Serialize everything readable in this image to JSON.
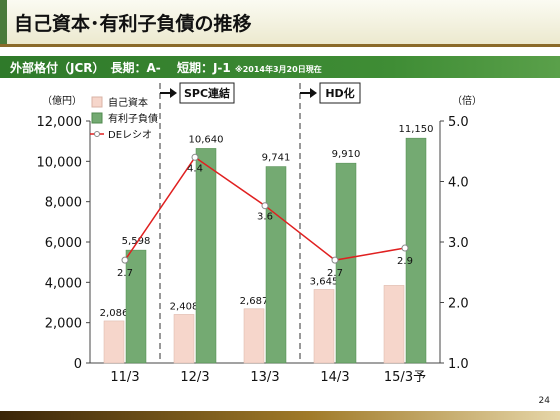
{
  "slide": {
    "title": "自己資本･有利子負債の推移",
    "rating_text": "外部格付（JCR）　長期：A-　 短期：J-1",
    "rating_note": "※2014年3月20日現在",
    "page_number": "24"
  },
  "chart_data": {
    "type": "bar",
    "categories": [
      "11/3",
      "12/3",
      "13/3",
      "14/3",
      "15/3予"
    ],
    "series": [
      {
        "name": "自己資本",
        "type": "bar",
        "axis": "left",
        "color": "#f6d6cb",
        "values": [
          2086,
          2408,
          2687,
          3645,
          3848
        ],
        "labels": [
          "2,086",
          "2,408",
          "2,687",
          "3,645",
          ""
        ]
      },
      {
        "name": "有利子負債",
        "type": "bar",
        "axis": "left",
        "color": "#74aa72",
        "values": [
          5598,
          10640,
          9741,
          9910,
          11150
        ],
        "labels": [
          "5,598",
          "10,640",
          "9,741",
          "9,910",
          "11,150"
        ]
      },
      {
        "name": "DEレシオ",
        "type": "line",
        "axis": "right",
        "color": "#e02020",
        "values": [
          2.7,
          4.4,
          3.6,
          2.7,
          2.9
        ],
        "labels": [
          "2.7",
          "4.4",
          "3.6",
          "2.7",
          "2.9"
        ]
      }
    ],
    "y_left": {
      "unit": "（億円）",
      "min": 0,
      "max": 12000,
      "ticks": [
        "0",
        "2,000",
        "4,000",
        "6,000",
        "8,000",
        "10,000",
        "12,000"
      ]
    },
    "y_right": {
      "unit": "（倍）",
      "min": 1.0,
      "max": 5.0,
      "ticks": [
        "1.0",
        "2.0",
        "3.0",
        "4.0",
        "5.0"
      ]
    },
    "annotations": [
      {
        "label": "SPC連結",
        "after_index": 0
      },
      {
        "label": "HD化",
        "after_index": 2
      }
    ],
    "legend_position": "top-left"
  }
}
